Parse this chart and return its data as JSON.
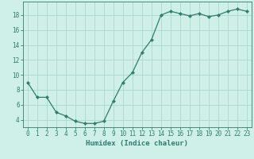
{
  "x": [
    0,
    1,
    2,
    3,
    4,
    5,
    6,
    7,
    8,
    9,
    10,
    11,
    12,
    13,
    14,
    15,
    16,
    17,
    18,
    19,
    20,
    21,
    22,
    23
  ],
  "y": [
    9,
    7,
    7,
    5,
    4.5,
    3.8,
    3.5,
    3.5,
    3.8,
    6.5,
    9,
    10.3,
    13,
    14.7,
    18,
    18.5,
    18.2,
    17.9,
    18.2,
    17.8,
    18.0,
    18.5,
    18.8,
    18.5
  ],
  "line_color": "#2e7d6e",
  "marker": "D",
  "marker_size": 2.2,
  "bg_color": "#cef0e8",
  "grid_color": "#aad8cc",
  "xlabel": "Humidex (Indice chaleur)",
  "ylabel": "",
  "xlim": [
    -0.5,
    23.5
  ],
  "ylim": [
    3.0,
    19.8
  ],
  "yticks": [
    4,
    6,
    8,
    10,
    12,
    14,
    16,
    18
  ],
  "xtick_labels": [
    "0",
    "1",
    "2",
    "3",
    "4",
    "5",
    "6",
    "7",
    "8",
    "9",
    "10",
    "11",
    "12",
    "13",
    "14",
    "15",
    "16",
    "17",
    "18",
    "19",
    "20",
    "21",
    "22",
    "23"
  ],
  "tick_color": "#2e7d6e",
  "label_color": "#2e7d6e",
  "xlabel_fontsize": 6.5,
  "tick_fontsize": 5.5
}
